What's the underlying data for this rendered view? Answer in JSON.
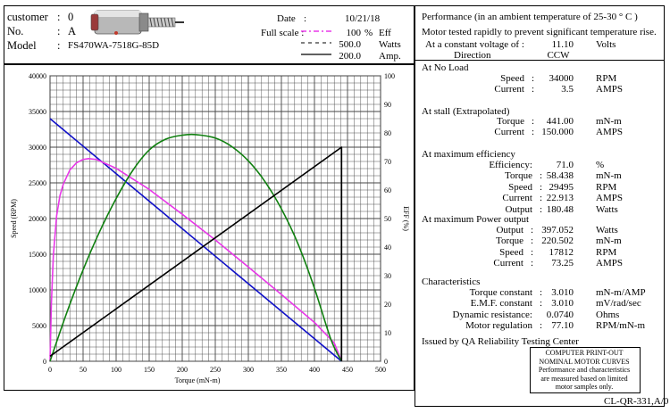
{
  "header": {
    "customer_label": "customer",
    "customer_sep": ":",
    "customer_value": "0",
    "no_label": "No.",
    "no_sep": ":",
    "no_value": "A",
    "model_label": "Model",
    "model_sep": ":",
    "model_value": "FS470WA-7518G-85D",
    "date_label": "Date",
    "date_sep": ":",
    "date_value": "10/21/18",
    "fullscale_label": "Full scale :",
    "legend": [
      {
        "value": "100",
        "unit": "%",
        "name": "Eff",
        "color": "#e838e8",
        "style": "dash-dot"
      },
      {
        "value": "500.0",
        "unit": "Watts",
        "name": "",
        "color": "#000000",
        "style": "dashed"
      },
      {
        "value": "200.0",
        "unit": "Amp.",
        "name": "",
        "color": "#000000",
        "style": "solid"
      }
    ]
  },
  "right": {
    "title": "Performance (in an ambient temperature of 25-30 ° C )",
    "subtitle": "Motor tested rapidly to prevent significant temperature rise.",
    "voltage_label": "At a constant voltage of :",
    "voltage_value": "11.10",
    "voltage_unit": "Volts",
    "direction_label": "Direction",
    "direction_value": "CCW",
    "noload_heading": "At No Load",
    "noload": [
      {
        "label": "Speed",
        "sep": ":",
        "value": "34000",
        "unit": "RPM"
      },
      {
        "label": "Current",
        "sep": ":",
        "value": "3.5",
        "unit": "AMPS"
      }
    ],
    "stall_heading": "At stall (Extrapolated)",
    "stall": [
      {
        "label": "Torque",
        "sep": ":",
        "value": "441.00",
        "unit": "mN-m"
      },
      {
        "label": "Current",
        "sep": ":",
        "value": "150.000",
        "unit": "AMPS"
      }
    ],
    "maxeff_heading": "At maximum efficiency",
    "maxeff": [
      {
        "label": "Efficiency:",
        "sep": "",
        "value": "71.0",
        "unit": "%"
      },
      {
        "label": "Torque",
        "sep": ":",
        "value": "58.438",
        "unit": "mN-m"
      },
      {
        "label": "Speed",
        "sep": ":",
        "value": "29495",
        "unit": "RPM"
      },
      {
        "label": "Current",
        "sep": ":",
        "value": "22.913",
        "unit": "AMPS"
      },
      {
        "label": "Output",
        "sep": ":",
        "value": "180.48",
        "unit": "Watts"
      }
    ],
    "maxpow_heading": "At maximum Power output",
    "maxpow": [
      {
        "label": "Output",
        "sep": ":",
        "value": "397.052",
        "unit": "Watts"
      },
      {
        "label": "Torque",
        "sep": ":",
        "value": "220.502",
        "unit": "mN-m"
      },
      {
        "label": "Speed",
        "sep": ":",
        "value": "17812",
        "unit": "RPM"
      },
      {
        "label": "Current",
        "sep": ":",
        "value": "73.25",
        "unit": "AMPS"
      }
    ],
    "char_heading": "Characteristics",
    "char": [
      {
        "label": "Torque constant",
        "sep": ":",
        "value": "3.010",
        "unit": "mN-m/AMP"
      },
      {
        "label": "E.M.F. constant",
        "sep": ":",
        "value": "3.010",
        "unit": "mV/rad/sec"
      },
      {
        "label": "Dynamic resistance:",
        "sep": "",
        "value": "0.0740",
        "unit": "Ohms"
      },
      {
        "label": "Motor regulation",
        "sep": ":",
        "value": "77.10",
        "unit": "RPM/mN-m"
      }
    ],
    "issued": "Issued by QA Reliability Testing  Center",
    "box_lines": [
      "COMPUTER  PRINT-OUT",
      "NOMINAL MOTOR CURVES",
      "Performance and characteristics",
      "are  measured  based  on  limited",
      "motor samples only."
    ],
    "doc_code": "CL-QR-331,A/0"
  },
  "colors": {
    "grid": "#444444",
    "speed": "#1010c8",
    "efficiency": "#e838e8",
    "power": "#108010",
    "current": "#000000"
  },
  "chart_data": {
    "type": "line",
    "xlabel": "Torque (mN-m)",
    "ylabel_left": "Speed (RPM)",
    "ylabel_right": "EFF (%)",
    "xlim": [
      0,
      500
    ],
    "ylim_left": [
      0,
      40000
    ],
    "ylim_right": [
      0,
      100
    ],
    "x_ticks": [
      0,
      50,
      100,
      150,
      200,
      250,
      300,
      350,
      400,
      450,
      500
    ],
    "y_left_ticks": [
      0,
      5000,
      10000,
      15000,
      20000,
      25000,
      30000,
      35000,
      40000
    ],
    "y_right_ticks": [
      0,
      10,
      20,
      30,
      40,
      50,
      60,
      70,
      80,
      90,
      100
    ],
    "grid": true,
    "series": [
      {
        "name": "Speed",
        "unit": "RPM",
        "axis": "left",
        "color": "#1010c8",
        "x": [
          0,
          441
        ],
        "y": [
          34000,
          0
        ]
      },
      {
        "name": "Eff",
        "unit": "%",
        "axis": "right",
        "color": "#e838e8",
        "x": [
          0,
          2,
          5,
          10,
          15,
          20,
          30,
          40,
          50,
          58.4,
          70,
          100,
          150,
          200,
          250,
          300,
          350,
          400,
          430,
          441
        ],
        "y": [
          0,
          20,
          37,
          51,
          58,
          62,
          67,
          69.5,
          70.7,
          71,
          70.7,
          67.6,
          60.2,
          51.5,
          42.5,
          33,
          23.4,
          13.6,
          6.4,
          0
        ]
      },
      {
        "name": "Output",
        "unit": "Watts",
        "axis": "power",
        "scale_max": 500,
        "color": "#108010",
        "x": [
          0,
          25,
          50,
          75,
          100,
          125,
          150,
          175,
          200,
          220.5,
          250,
          275,
          300,
          325,
          350,
          375,
          400,
          425,
          441
        ],
        "y": [
          0,
          84,
          160,
          227,
          285,
          334,
          370,
          389,
          396,
          397,
          391,
          376,
          351,
          315,
          267,
          206,
          128,
          38,
          0
        ]
      },
      {
        "name": "Current",
        "unit": "Amp.",
        "axis": "current",
        "scale_max": 200,
        "color": "#000000",
        "x": [
          0,
          441,
          441
        ],
        "y": [
          3.5,
          150,
          0
        ]
      }
    ]
  }
}
